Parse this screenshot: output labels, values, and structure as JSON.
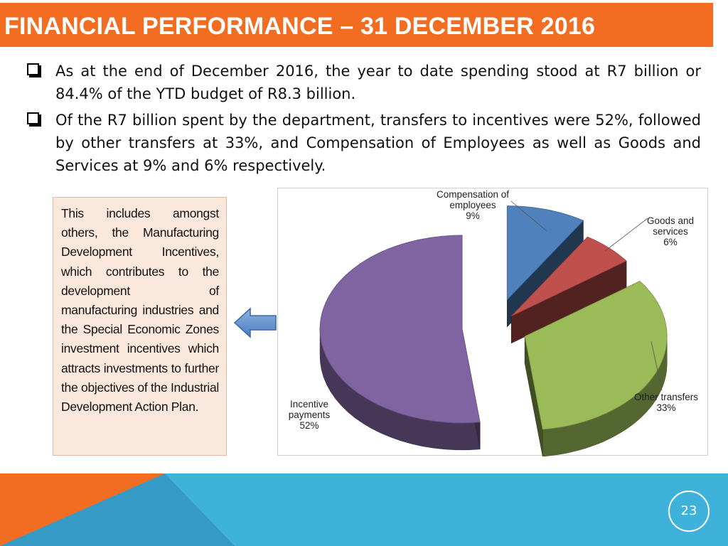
{
  "slide": {
    "title": "FINANCIAL PERFORMANCE – 31 DECEMBER 2016",
    "bullets": [
      "As at the end of December 2016, the year to date spending stood at R7 billion or 84.4% of the YTD budget of R8.3 billion.",
      "Of the R7 billion spent by the department, transfers to incentives were 52%, followed by other transfers at 33%, and Compensation of Employees as well as Goods and Services at 9% and 6% respectively."
    ],
    "callout": "This includes amongst others, the Manufacturing Development Incentives, which contributes to the development of manufacturing industries and the Special Economic Zones investment incentives which attracts investments to further the objectives of the Industrial Development Action Plan.",
    "page_number": "23"
  },
  "colors": {
    "title_bar": "#f26d21",
    "footer_blue": "#3fb2dc",
    "footer_orange": "#f26d21"
  },
  "chart_data": {
    "type": "pie",
    "style": "3d-exploded",
    "slices": [
      {
        "label_lines": [
          "Compensation of",
          "employees"
        ],
        "value": 9,
        "value_label": "9%",
        "color": "#4f81bd"
      },
      {
        "label_lines": [
          "Goods and",
          "services"
        ],
        "value": 6,
        "value_label": "6%",
        "color": "#c0504d"
      },
      {
        "label_lines": [
          "Other transfers"
        ],
        "value": 33,
        "value_label": "33%",
        "color": "#9bbb59"
      },
      {
        "label_lines": [
          "Incentive",
          "payments"
        ],
        "value": 52,
        "value_label": "52%",
        "color": "#8064a2"
      }
    ]
  }
}
